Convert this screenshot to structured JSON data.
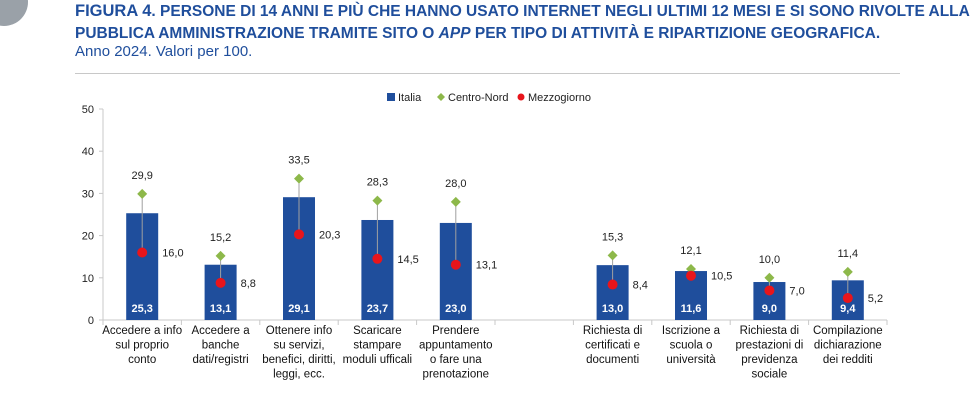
{
  "figure": {
    "label": "FIGURA 4",
    "title_p1": ". PERSONE DI 14 ANNI E PIÙ CHE HANNO USATO INTERNET NEGLI ULTIMI 12 MESI E SI SONO RIVOLTE ALLA PUBBLICA AMMINISTRAZIONE TRAMITE SITO O ",
    "title_app": "APP",
    "title_p2": " PER TIPO DI ATTIVITÀ E RIPARTIZIONE GEOGRAFICA.",
    "subtitle": "Anno 2024. Valori per 100."
  },
  "colors": {
    "title": "#1f4e9c",
    "bar": "#1f4e9c",
    "centro_nord": "#8db84a",
    "mezzogiorno": "#e8151b",
    "whisker": "#a0a0a0",
    "grid": "#c8c8c8"
  },
  "chart_data": {
    "type": "bar",
    "ylim": [
      0,
      50
    ],
    "yticks": [
      0,
      10,
      20,
      30,
      40,
      50
    ],
    "legend_position": "top",
    "categories": [
      [
        "Accedere a info",
        "sul proprio",
        "conto"
      ],
      [
        "Accedere a",
        "banche",
        "dati/registri"
      ],
      [
        "Ottenere info",
        "su servizi,",
        "benefici, diritti,",
        "leggi,  ecc."
      ],
      [
        "Scaricare",
        "stampare",
        "moduli ufficali"
      ],
      [
        "Prendere",
        "appuntamento",
        "o fare una",
        "prenotazione"
      ],
      [],
      [
        "Richiesta di",
        "certificati e",
        "documenti"
      ],
      [
        "Iscrizione a",
        "scuola o",
        "università"
      ],
      [
        "Richiesta di",
        "prestazioni di",
        "previdenza",
        "sociale"
      ],
      [
        "Compilazione",
        "dichiarazione",
        "dei redditi"
      ]
    ],
    "series": [
      {
        "name": "Italia",
        "values": [
          25.3,
          13.1,
          29.1,
          23.7,
          23.0,
          null,
          13.0,
          11.6,
          9.0,
          9.4
        ],
        "labels": [
          "25,3",
          "13,1",
          "29,1",
          "23,7",
          "23,0",
          "",
          "13,0",
          "11,6",
          "9,0",
          "9,4"
        ]
      },
      {
        "name": "Centro-Nord",
        "values": [
          29.9,
          15.2,
          33.5,
          28.3,
          28.0,
          null,
          15.3,
          12.1,
          10.0,
          11.4
        ],
        "labels": [
          "29,9",
          "15,2",
          "33,5",
          "28,3",
          "28,0",
          "",
          "15,3",
          "12,1",
          "10,0",
          "11,4"
        ]
      },
      {
        "name": "Mezzogiorno",
        "values": [
          16.0,
          8.8,
          20.3,
          14.5,
          13.1,
          null,
          8.4,
          10.5,
          7.0,
          5.2
        ],
        "labels": [
          "16,0",
          "8,8",
          "20,3",
          "14,5",
          "13,1",
          "",
          "8,4",
          "10,5",
          "7,0",
          "5,2"
        ]
      }
    ]
  }
}
